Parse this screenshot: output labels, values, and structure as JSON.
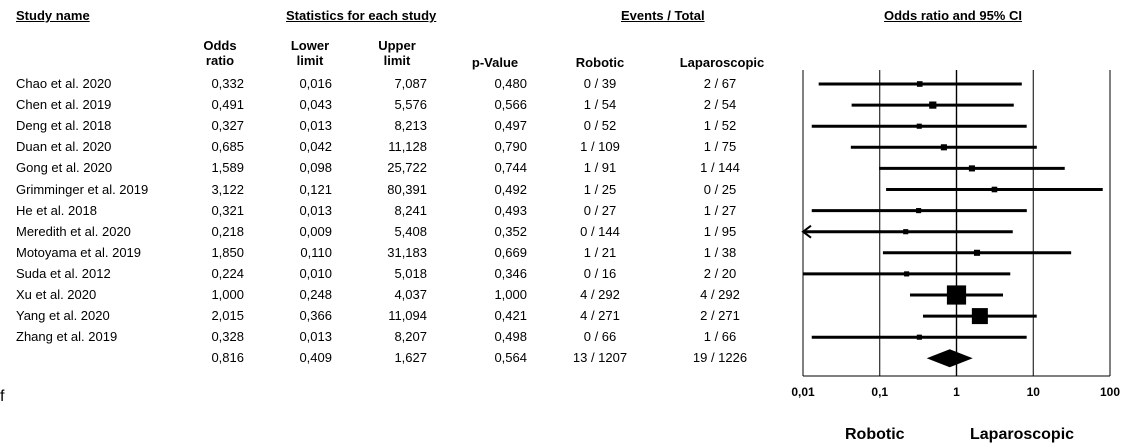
{
  "headers": {
    "study_name": "Study name",
    "statistics": "Statistics for each study",
    "events": "Events / Total",
    "plot": "Odds ratio and 95% CI"
  },
  "subheaders": {
    "odds_ratio": [
      "Odds",
      "ratio"
    ],
    "lower_limit": [
      "Lower",
      "limit"
    ],
    "upper_limit": [
      "Upper",
      "limit"
    ],
    "p_value": "p-Value",
    "robotic": "Robotic",
    "laparoscopic": "Laparoscopic"
  },
  "studies": [
    {
      "name": "Chao et al. 2020",
      "or": "0,332",
      "lower": "0,016",
      "upper": "7,087",
      "p": "0,480",
      "robotic": "0 / 39",
      "lap": "2 / 67"
    },
    {
      "name": "Chen et al. 2019",
      "or": "0,491",
      "lower": "0,043",
      "upper": "5,576",
      "p": "0,566",
      "robotic": "1 / 54",
      "lap": "2 / 54"
    },
    {
      "name": "Deng et al. 2018",
      "or": "0,327",
      "lower": "0,013",
      "upper": "8,213",
      "p": "0,497",
      "robotic": "0 / 52",
      "lap": "1 / 52"
    },
    {
      "name": "Duan et al. 2020",
      "or": "0,685",
      "lower": "0,042",
      "upper": "11,128",
      "p": "0,790",
      "robotic": "1 / 109",
      "lap": "1 / 75"
    },
    {
      "name": "Gong et al. 2020",
      "or": "1,589",
      "lower": "0,098",
      "upper": "25,722",
      "p": "0,744",
      "robotic": "1 / 91",
      "lap": "1 / 144"
    },
    {
      "name": "Grimminger et al. 2019",
      "or": "3,122",
      "lower": "0,121",
      "upper": "80,391",
      "p": "0,492",
      "robotic": "1 / 25",
      "lap": "0 / 25"
    },
    {
      "name": "He et al. 2018",
      "or": "0,321",
      "lower": "0,013",
      "upper": "8,241",
      "p": "0,493",
      "robotic": "0 / 27",
      "lap": "1 / 27"
    },
    {
      "name": "Meredith et al. 2020",
      "or": "0,218",
      "lower": "0,009",
      "upper": "5,408",
      "p": "0,352",
      "robotic": "0 / 144",
      "lap": "1 / 95"
    },
    {
      "name": "Motoyama et al. 2019",
      "or": "1,850",
      "lower": "0,110",
      "upper": "31,183",
      "p": "0,669",
      "robotic": "1 / 21",
      "lap": "1 / 38"
    },
    {
      "name": "Suda et al. 2012",
      "or": "0,224",
      "lower": "0,010",
      "upper": "5,018",
      "p": "0,346",
      "robotic": "0 / 16",
      "lap": "2 / 20"
    },
    {
      "name": "Xu et al. 2020",
      "or": "1,000",
      "lower": "0,248",
      "upper": "4,037",
      "p": "1,000",
      "robotic": "4 / 292",
      "lap": "4 / 292"
    },
    {
      "name": "Yang et al. 2020",
      "or": "2,015",
      "lower": "0,366",
      "upper": "11,094",
      "p": "0,421",
      "robotic": "4 / 271",
      "lap": "2 / 271"
    },
    {
      "name": "Zhang et al. 2019",
      "or": "0,328",
      "lower": "0,013",
      "upper": "8,207",
      "p": "0,498",
      "robotic": "0 / 66",
      "lap": "1 / 66"
    }
  ],
  "pooled": {
    "or": "0,816",
    "lower": "0,409",
    "upper": "1,627",
    "p": "0,564",
    "robotic": "13 / 1207",
    "lap": "19 / 1226"
  },
  "favours": {
    "left": "Robotic",
    "right": "Laparoscopic"
  },
  "stray_char": "f",
  "chart_data": {
    "type": "forest",
    "scale": "log",
    "xlim": [
      0.01,
      100
    ],
    "x_ticks": [
      "0,01",
      "0,1",
      "1",
      "10",
      "100"
    ],
    "x_tick_values": [
      0.01,
      0.1,
      1,
      10,
      100
    ],
    "reference_line": 1,
    "studies": [
      {
        "or": 0.332,
        "lower": 0.016,
        "upper": 7.087,
        "weight": 3.5
      },
      {
        "or": 0.491,
        "lower": 0.043,
        "upper": 5.576,
        "weight": 4.5
      },
      {
        "or": 0.327,
        "lower": 0.013,
        "upper": 8.213,
        "weight": 3.2
      },
      {
        "or": 0.685,
        "lower": 0.042,
        "upper": 11.128,
        "weight": 3.8
      },
      {
        "or": 1.589,
        "lower": 0.098,
        "upper": 25.722,
        "weight": 3.8
      },
      {
        "or": 3.122,
        "lower": 0.121,
        "upper": 80.391,
        "weight": 3.5
      },
      {
        "or": 0.321,
        "lower": 0.013,
        "upper": 8.241,
        "weight": 3.2
      },
      {
        "or": 0.218,
        "lower": 0.009,
        "upper": 5.408,
        "weight": 3.2
      },
      {
        "or": 1.85,
        "lower": 0.11,
        "upper": 31.183,
        "weight": 3.8
      },
      {
        "or": 0.224,
        "lower": 0.01,
        "upper": 5.018,
        "weight": 3.2
      },
      {
        "or": 1.0,
        "lower": 0.248,
        "upper": 4.037,
        "weight": 12
      },
      {
        "or": 2.015,
        "lower": 0.366,
        "upper": 11.094,
        "weight": 10
      },
      {
        "or": 0.328,
        "lower": 0.013,
        "upper": 8.207,
        "weight": 3.2
      }
    ],
    "pooled": {
      "or": 0.816,
      "lower": 0.409,
      "upper": 1.627
    }
  }
}
